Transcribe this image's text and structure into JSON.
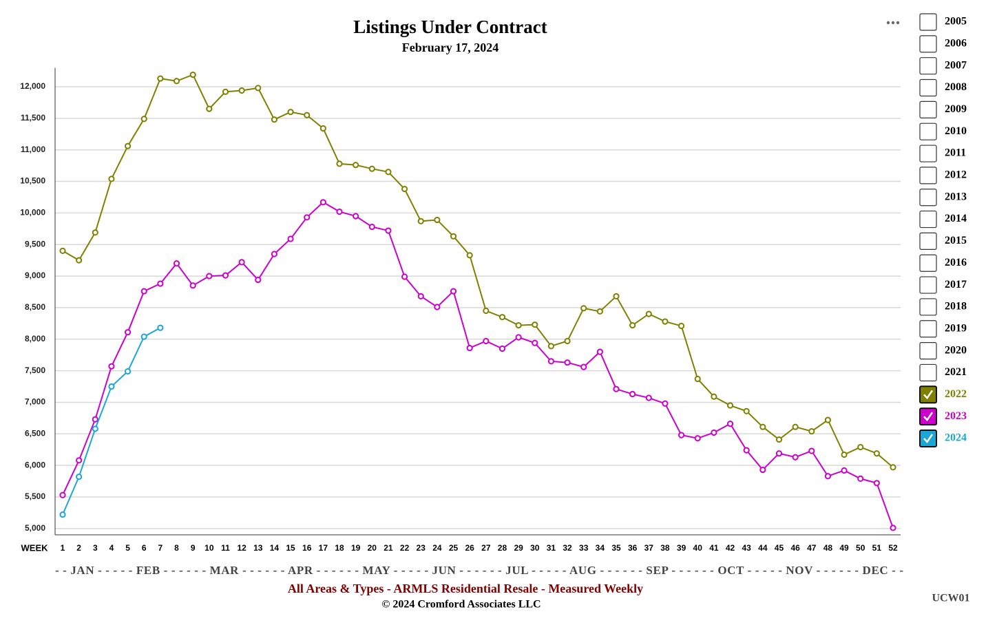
{
  "chart_data": {
    "type": "line",
    "title": "Listings Under Contract",
    "subtitle": "February 17, 2024",
    "x_label": "WEEK",
    "month_axis": "- - JAN - - - - - FEB - - - - - - MAR - - - - - - APR - - - - - - MAY - - - - - JUN - - - - - - JUL - - - - - AUG - - - - - - SEP - - - - - - OCT - - - - - NOV - - - - - - DEC - -",
    "footer": "All Areas & Types - ARMLS Residential Resale - Measured Weekly",
    "copyright": "© 2024 Cromford Associates LLC",
    "code": "UCW01",
    "categories": [
      1,
      2,
      3,
      4,
      5,
      6,
      7,
      8,
      9,
      10,
      11,
      12,
      13,
      14,
      15,
      16,
      17,
      18,
      19,
      20,
      21,
      22,
      23,
      24,
      25,
      26,
      27,
      28,
      29,
      30,
      31,
      32,
      33,
      34,
      35,
      36,
      37,
      38,
      39,
      40,
      41,
      42,
      43,
      44,
      45,
      46,
      47,
      48,
      49,
      50,
      51,
      52
    ],
    "ylim": [
      4900,
      12300
    ],
    "yticks": [
      {
        "value": 5000,
        "label": "5,000"
      },
      {
        "value": 5500,
        "label": "5,500"
      },
      {
        "value": 6000,
        "label": "6,000"
      },
      {
        "value": 6500,
        "label": "6,500"
      },
      {
        "value": 7000,
        "label": "7,000"
      },
      {
        "value": 7500,
        "label": "7,500"
      },
      {
        "value": 8000,
        "label": "8,000"
      },
      {
        "value": 8500,
        "label": "8,500"
      },
      {
        "value": 9000,
        "label": "9,000"
      },
      {
        "value": 9500,
        "label": "9,500"
      },
      {
        "value": 10000,
        "label": "10,000"
      },
      {
        "value": 10500,
        "label": "10,500"
      },
      {
        "value": 11000,
        "label": "11,000"
      },
      {
        "value": 11500,
        "label": "11,500"
      },
      {
        "value": 12000,
        "label": "12,000"
      }
    ],
    "grid": true,
    "unselected_years": [
      "2005",
      "2006",
      "2007",
      "2008",
      "2009",
      "2010",
      "2011",
      "2012",
      "2013",
      "2014",
      "2015",
      "2016",
      "2017",
      "2018",
      "2019",
      "2020",
      "2021"
    ],
    "series": [
      {
        "name": "2022",
        "color": "#808000",
        "values": [
          9400,
          9250,
          9690,
          10540,
          11060,
          11490,
          12130,
          12090,
          12190,
          11650,
          11920,
          11940,
          11980,
          11480,
          11600,
          11550,
          11340,
          10780,
          10760,
          10700,
          10650,
          10380,
          9870,
          9890,
          9630,
          9330,
          8450,
          8350,
          8220,
          8230,
          7890,
          7970,
          8490,
          8440,
          8680,
          8220,
          8400,
          8280,
          8210,
          7370,
          7090,
          6950,
          6860,
          6610,
          6410,
          6610,
          6540,
          6720,
          6170,
          6290,
          6190,
          5970
        ]
      },
      {
        "name": "2023",
        "color": "#cc00cc",
        "values": [
          5530,
          6080,
          6730,
          7570,
          8110,
          8760,
          8880,
          9200,
          8850,
          9000,
          9010,
          9220,
          8940,
          9350,
          9590,
          9930,
          10170,
          10020,
          9950,
          9780,
          9720,
          8990,
          8680,
          8510,
          8760,
          7860,
          7970,
          7850,
          8030,
          7940,
          7650,
          7630,
          7560,
          7800,
          7210,
          7130,
          7070,
          6980,
          6480,
          6430,
          6520,
          6660,
          6240,
          5930,
          6190,
          6130,
          6230,
          5830,
          5920,
          5790,
          5720,
          5010
        ]
      },
      {
        "name": "2024",
        "color": "#1aa7d6",
        "values": [
          5220,
          5820,
          6580,
          7250,
          7490,
          8040,
          8180,
          null,
          null,
          null,
          null,
          null,
          null,
          null,
          null,
          null,
          null,
          null,
          null,
          null,
          null,
          null,
          null,
          null,
          null,
          null,
          null,
          null,
          null,
          null,
          null,
          null,
          null,
          null,
          null,
          null,
          null,
          null,
          null,
          null,
          null,
          null,
          null,
          null,
          null,
          null,
          null,
          null,
          null,
          null,
          null,
          null
        ]
      }
    ]
  }
}
